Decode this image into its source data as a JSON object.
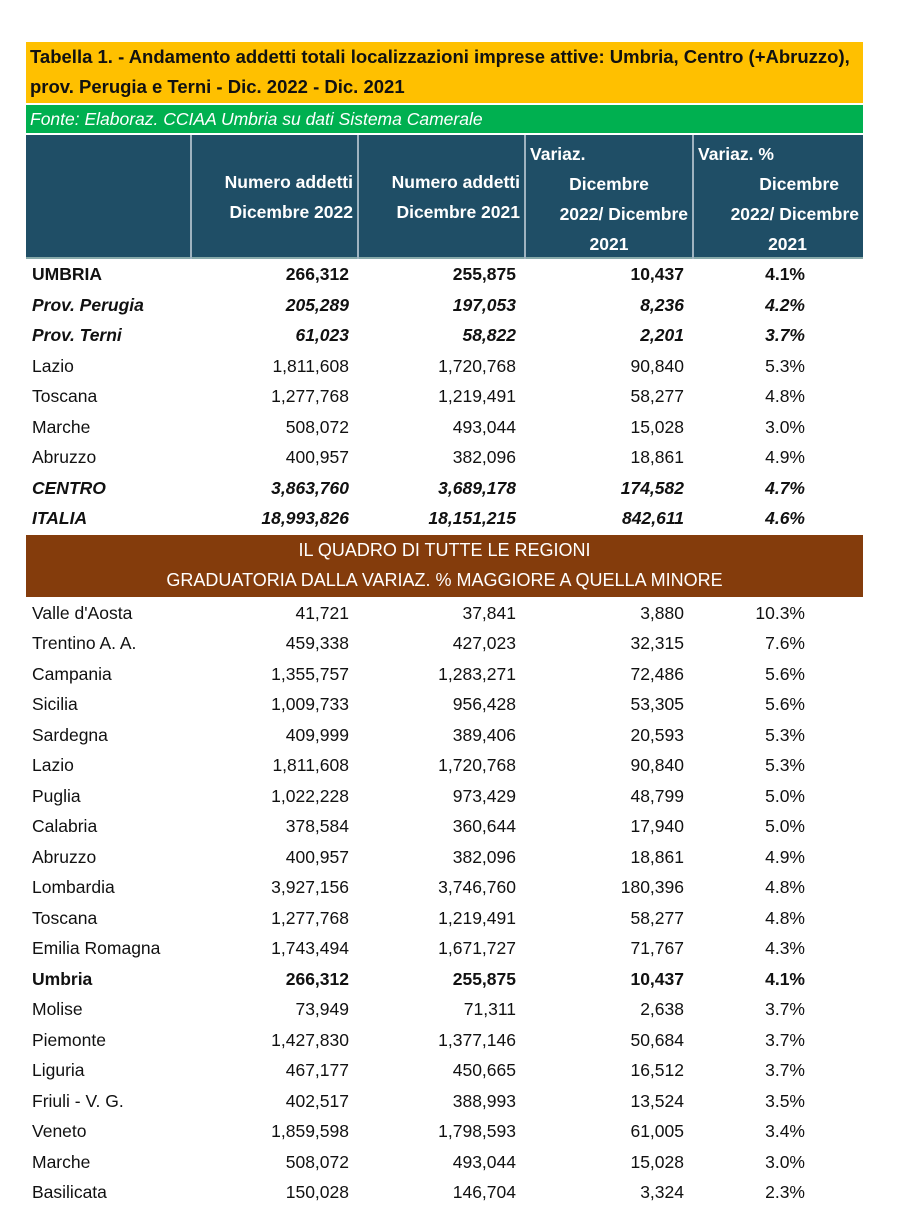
{
  "title": "Tabella 1. - Andamento addetti totali localizzazioni imprese attive: Umbria, Centro (+Abruzzo), prov. Perugia e Terni - Dic. 2022 - Dic. 2021",
  "source": "Fonte: Elaboraz. CCIAA Umbria su dati Sistema Camerale",
  "headers": [
    "",
    [
      "Numero addetti",
      "Dicembre 2022"
    ],
    [
      "Numero addetti",
      "Dicembre 2021"
    ],
    [
      "Variaz.",
      "Dicembre",
      "2022/ Dicembre",
      "2021"
    ],
    [
      "Variaz. %",
      "Dicembre",
      "2022/ Dicembre",
      "2021"
    ]
  ],
  "top_rows": [
    {
      "style": "bold",
      "cells": [
        "UMBRIA",
        "266,312",
        "255,875",
        "10,437",
        "4.1%"
      ]
    },
    {
      "style": "bi",
      "cells": [
        "Prov. Perugia",
        "205,289",
        "197,053",
        "8,236",
        "4.2%"
      ]
    },
    {
      "style": "bi",
      "cells": [
        "Prov. Terni",
        "61,023",
        "58,822",
        "2,201",
        "3.7%"
      ]
    },
    {
      "style": "",
      "cells": [
        "Lazio",
        "1,811,608",
        "1,720,768",
        "90,840",
        "5.3%"
      ]
    },
    {
      "style": "",
      "cells": [
        "Toscana",
        "1,277,768",
        "1,219,491",
        "58,277",
        "4.8%"
      ]
    },
    {
      "style": "",
      "cells": [
        "Marche",
        "508,072",
        "493,044",
        "15,028",
        "3.0%"
      ]
    },
    {
      "style": "",
      "cells": [
        "Abruzzo",
        "400,957",
        "382,096",
        "18,861",
        "4.9%"
      ]
    },
    {
      "style": "bi",
      "cells": [
        "CENTRO",
        "3,863,760",
        "3,689,178",
        "174,582",
        "4.7%"
      ]
    },
    {
      "style": "bi",
      "cells": [
        "ITALIA",
        "18,993,826",
        "18,151,215",
        "842,611",
        "4.6%"
      ]
    }
  ],
  "band": {
    "line1": "IL QUADRO DI TUTTE LE REGIONI",
    "line2": "GRADUATORIA DALLA VARIAZ. % MAGGIORE A QUELLA MINORE"
  },
  "region_rows": [
    {
      "style": "",
      "cells": [
        "Valle d'Aosta",
        "41,721",
        "37,841",
        "3,880",
        "10.3%"
      ]
    },
    {
      "style": "",
      "cells": [
        "Trentino A. A.",
        "459,338",
        "427,023",
        "32,315",
        "7.6%"
      ]
    },
    {
      "style": "",
      "cells": [
        "Campania",
        "1,355,757",
        "1,283,271",
        "72,486",
        "5.6%"
      ]
    },
    {
      "style": "",
      "cells": [
        "Sicilia",
        "1,009,733",
        "956,428",
        "53,305",
        "5.6%"
      ]
    },
    {
      "style": "",
      "cells": [
        "Sardegna",
        "409,999",
        "389,406",
        "20,593",
        "5.3%"
      ]
    },
    {
      "style": "",
      "cells": [
        "Lazio",
        "1,811,608",
        "1,720,768",
        "90,840",
        "5.3%"
      ]
    },
    {
      "style": "",
      "cells": [
        "Puglia",
        "1,022,228",
        "973,429",
        "48,799",
        "5.0%"
      ]
    },
    {
      "style": "",
      "cells": [
        "Calabria",
        "378,584",
        "360,644",
        "17,940",
        "5.0%"
      ]
    },
    {
      "style": "",
      "cells": [
        "Abruzzo",
        "400,957",
        "382,096",
        "18,861",
        "4.9%"
      ]
    },
    {
      "style": "",
      "cells": [
        "Lombardia",
        "3,927,156",
        "3,746,760",
        "180,396",
        "4.8%"
      ]
    },
    {
      "style": "",
      "cells": [
        "Toscana",
        "1,277,768",
        "1,219,491",
        "58,277",
        "4.8%"
      ]
    },
    {
      "style": "",
      "cells": [
        "Emilia Romagna",
        "1,743,494",
        "1,671,727",
        "71,767",
        "4.3%"
      ]
    },
    {
      "style": "bold",
      "cells": [
        "Umbria",
        "266,312",
        "255,875",
        "10,437",
        "4.1%"
      ]
    },
    {
      "style": "",
      "cells": [
        "Molise",
        "73,949",
        "71,311",
        "2,638",
        "3.7%"
      ]
    },
    {
      "style": "",
      "cells": [
        "Piemonte",
        "1,427,830",
        "1,377,146",
        "50,684",
        "3.7%"
      ]
    },
    {
      "style": "",
      "cells": [
        "Liguria",
        "467,177",
        "450,665",
        "16,512",
        "3.7%"
      ]
    },
    {
      "style": "",
      "cells": [
        "Friuli - V. G.",
        "402,517",
        "388,993",
        "13,524",
        "3.5%"
      ]
    },
    {
      "style": "",
      "cells": [
        "Veneto",
        "1,859,598",
        "1,798,593",
        "61,005",
        "3.4%"
      ]
    },
    {
      "style": "",
      "cells": [
        "Marche",
        "508,072",
        "493,044",
        "15,028",
        "3.0%"
      ]
    },
    {
      "style": "",
      "cells": [
        "Basilicata",
        "150,028",
        "146,704",
        "3,324",
        "2.3%"
      ]
    }
  ]
}
